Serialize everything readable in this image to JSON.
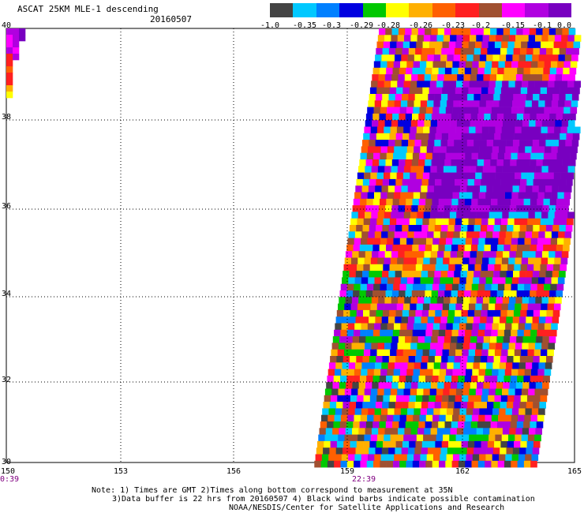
{
  "header": {
    "title": "ASCAT 25KM MLE-1 descending",
    "date": "20160507"
  },
  "colorbar": {
    "colors": [
      "#444444",
      "#00c8ff",
      "#0080ff",
      "#0000e0",
      "#00c800",
      "#ffff00",
      "#ffb000",
      "#ff6000",
      "#ff2020",
      "#a05030",
      "#ff00ff",
      "#b000e0",
      "#7800c0"
    ],
    "labels": [
      "-1.0",
      "-0.35",
      "-0.3",
      "-0.29",
      "-0.28",
      "-0.26",
      "-0.23",
      "-0.2",
      "-0.15",
      "-0.1",
      "0.0"
    ]
  },
  "axes": {
    "lat_labels": [
      "40",
      "38",
      "36",
      "34",
      "32",
      "30"
    ],
    "lon_labels": [
      "150",
      "153",
      "156",
      "159",
      "162",
      "165"
    ],
    "time_labels": [
      "0:39",
      "22:39"
    ]
  },
  "notes": [
    "Note: 1) Times are GMT 2)Times along bottom correspond to measurement at 35N",
    "3)Data buffer is 22 hrs from 20160507 4) Black wind barbs indicate possible contamination",
    "NOAA/NESDIS/Center for Satellite Applications and Research"
  ]
}
